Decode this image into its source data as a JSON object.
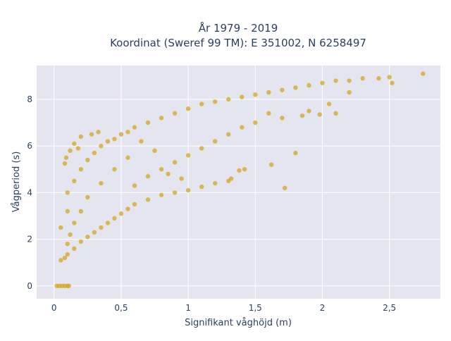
{
  "chart_data": {
    "type": "scatter",
    "title_line1": "År 1979 - 2019",
    "title_line2": "Koordinat (Sweref 99 TM): E 351002, N 6258497",
    "xlabel": "Signifikant våghöjd (m)",
    "ylabel": "Vågperiod (s)",
    "xlim": [
      -0.13,
      2.88
    ],
    "ylim": [
      -0.55,
      9.45
    ],
    "x_ticks": [
      0,
      0.5,
      1,
      1.5,
      2,
      2.5
    ],
    "x_tick_labels": [
      "0",
      "0,5",
      "1",
      "1,5",
      "2",
      "2,5"
    ],
    "y_ticks": [
      0,
      2,
      4,
      6,
      8
    ],
    "y_tick_labels": [
      "0",
      "2",
      "4",
      "6",
      "8"
    ],
    "marker_color": "#d4a520",
    "plot_bg": "#e5e5f0",
    "grid": true,
    "series": [
      {
        "points": [
          [
            0.02,
            0.0
          ],
          [
            0.04,
            0.0
          ],
          [
            0.06,
            0.0
          ],
          [
            0.08,
            0.0
          ],
          [
            0.1,
            0.0
          ],
          [
            0.11,
            0.0
          ],
          [
            0.05,
            1.1
          ],
          [
            0.08,
            1.2
          ],
          [
            0.1,
            1.35
          ],
          [
            0.15,
            1.6
          ],
          [
            0.2,
            1.9
          ],
          [
            0.25,
            2.1
          ],
          [
            0.3,
            2.3
          ],
          [
            0.35,
            2.5
          ],
          [
            0.4,
            2.7
          ],
          [
            0.45,
            2.9
          ],
          [
            0.5,
            3.1
          ],
          [
            0.55,
            3.3
          ],
          [
            0.6,
            3.5
          ],
          [
            0.7,
            3.7
          ],
          [
            0.8,
            3.9
          ],
          [
            0.9,
            4.0
          ],
          [
            1.0,
            4.1
          ],
          [
            1.1,
            4.25
          ],
          [
            1.2,
            4.4
          ],
          [
            1.3,
            4.5
          ],
          [
            1.32,
            4.6
          ],
          [
            0.05,
            2.5
          ],
          [
            0.1,
            3.2
          ],
          [
            0.1,
            4.0
          ],
          [
            0.15,
            4.5
          ],
          [
            0.2,
            5.0
          ],
          [
            0.25,
            5.4
          ],
          [
            0.3,
            5.7
          ],
          [
            0.35,
            6.0
          ],
          [
            0.4,
            6.2
          ],
          [
            0.45,
            6.3
          ],
          [
            0.5,
            6.5
          ],
          [
            0.55,
            6.6
          ],
          [
            0.6,
            6.8
          ],
          [
            0.7,
            7.0
          ],
          [
            0.8,
            7.2
          ],
          [
            0.9,
            7.4
          ],
          [
            1.0,
            7.6
          ],
          [
            1.1,
            7.8
          ],
          [
            1.2,
            7.9
          ],
          [
            1.3,
            8.0
          ],
          [
            1.4,
            8.1
          ],
          [
            1.5,
            8.2
          ],
          [
            1.6,
            8.3
          ],
          [
            1.7,
            8.4
          ],
          [
            1.8,
            8.5
          ],
          [
            1.9,
            8.6
          ],
          [
            2.0,
            8.7
          ],
          [
            2.1,
            8.8
          ],
          [
            2.2,
            8.8
          ],
          [
            2.3,
            8.9
          ],
          [
            2.42,
            8.9
          ],
          [
            2.5,
            8.95
          ],
          [
            2.75,
            9.1
          ],
          [
            2.52,
            8.7
          ],
          [
            2.2,
            8.3
          ],
          [
            2.05,
            7.8
          ],
          [
            1.98,
            7.35
          ],
          [
            2.1,
            7.4
          ],
          [
            1.9,
            7.5
          ],
          [
            1.85,
            7.3
          ],
          [
            1.7,
            7.2
          ],
          [
            1.6,
            7.4
          ],
          [
            1.5,
            7.0
          ],
          [
            1.4,
            6.8
          ],
          [
            1.3,
            6.5
          ],
          [
            1.2,
            6.2
          ],
          [
            1.1,
            5.9
          ],
          [
            1.0,
            5.6
          ],
          [
            0.9,
            5.3
          ],
          [
            0.8,
            5.0
          ],
          [
            0.7,
            4.7
          ],
          [
            0.6,
            4.3
          ],
          [
            1.72,
            4.2
          ],
          [
            1.62,
            5.2
          ],
          [
            1.8,
            5.7
          ],
          [
            1.42,
            5.0
          ],
          [
            1.38,
            4.95
          ],
          [
            0.95,
            4.6
          ],
          [
            0.85,
            4.8
          ],
          [
            0.75,
            5.8
          ],
          [
            0.65,
            6.2
          ],
          [
            0.55,
            5.5
          ],
          [
            0.45,
            5.0
          ],
          [
            0.35,
            4.4
          ],
          [
            0.25,
            3.8
          ],
          [
            0.2,
            3.2
          ],
          [
            0.15,
            2.7
          ],
          [
            0.12,
            2.2
          ],
          [
            0.1,
            1.8
          ],
          [
            0.12,
            5.8
          ],
          [
            0.15,
            6.1
          ],
          [
            0.2,
            6.4
          ],
          [
            0.28,
            6.5
          ],
          [
            0.33,
            6.6
          ],
          [
            0.18,
            5.9
          ],
          [
            0.08,
            5.25
          ],
          [
            0.09,
            5.5
          ]
        ]
      }
    ]
  }
}
